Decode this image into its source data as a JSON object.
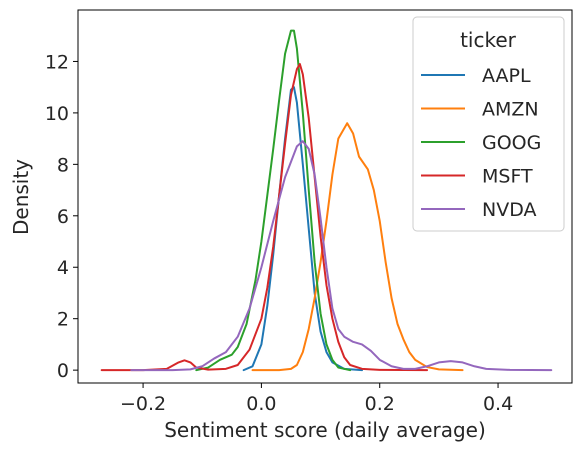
{
  "chart_data": {
    "type": "line",
    "xlabel": "Sentiment score (daily average)",
    "ylabel": "Density",
    "xlim": [
      -0.31,
      0.525
    ],
    "ylim": [
      -0.5,
      14.0
    ],
    "x_ticks": [
      -0.2,
      0.0,
      0.2,
      0.4
    ],
    "x_tick_labels": [
      "−0.2",
      "0.0",
      "0.2",
      "0.4"
    ],
    "y_ticks": [
      0,
      2,
      4,
      6,
      8,
      10,
      12
    ],
    "y_tick_labels": [
      "0",
      "2",
      "4",
      "6",
      "8",
      "10",
      "12"
    ],
    "grid": false,
    "legend": {
      "title": "ticker",
      "position": "top-right"
    },
    "series": [
      {
        "name": "AAPL",
        "color": "#1f77b4",
        "points": [
          [
            -0.03,
            0
          ],
          [
            -0.015,
            0.15
          ],
          [
            0.0,
            1.0
          ],
          [
            0.01,
            2.5
          ],
          [
            0.02,
            4.5
          ],
          [
            0.03,
            6.8
          ],
          [
            0.04,
            9.0
          ],
          [
            0.05,
            10.9
          ],
          [
            0.055,
            11.0
          ],
          [
            0.06,
            10.4
          ],
          [
            0.07,
            8.0
          ],
          [
            0.08,
            5.5
          ],
          [
            0.09,
            3.0
          ],
          [
            0.1,
            1.5
          ],
          [
            0.11,
            0.7
          ],
          [
            0.12,
            0.3
          ],
          [
            0.14,
            0.05
          ],
          [
            0.17,
            0
          ]
        ]
      },
      {
        "name": "AMZN",
        "color": "#ff7f0e",
        "points": [
          [
            -0.015,
            0
          ],
          [
            0.03,
            0
          ],
          [
            0.05,
            0.05
          ],
          [
            0.06,
            0.2
          ],
          [
            0.07,
            0.7
          ],
          [
            0.08,
            1.6
          ],
          [
            0.09,
            2.8
          ],
          [
            0.1,
            4.2
          ],
          [
            0.11,
            5.8
          ],
          [
            0.12,
            7.6
          ],
          [
            0.13,
            9.0
          ],
          [
            0.145,
            9.6
          ],
          [
            0.155,
            9.2
          ],
          [
            0.165,
            8.3
          ],
          [
            0.18,
            7.8
          ],
          [
            0.19,
            7.0
          ],
          [
            0.2,
            5.8
          ],
          [
            0.21,
            4.2
          ],
          [
            0.22,
            2.8
          ],
          [
            0.23,
            1.8
          ],
          [
            0.24,
            1.2
          ],
          [
            0.25,
            0.7
          ],
          [
            0.26,
            0.4
          ],
          [
            0.28,
            0.12
          ],
          [
            0.3,
            0.03
          ],
          [
            0.34,
            0
          ]
        ]
      },
      {
        "name": "GOOG",
        "color": "#2ca02c",
        "points": [
          [
            -0.11,
            0
          ],
          [
            -0.09,
            0.1
          ],
          [
            -0.07,
            0.4
          ],
          [
            -0.05,
            0.6
          ],
          [
            -0.04,
            0.9
          ],
          [
            -0.025,
            1.8
          ],
          [
            -0.01,
            3.5
          ],
          [
            0.0,
            5.0
          ],
          [
            0.01,
            6.8
          ],
          [
            0.02,
            8.6
          ],
          [
            0.03,
            10.5
          ],
          [
            0.04,
            12.3
          ],
          [
            0.05,
            13.2
          ],
          [
            0.055,
            13.2
          ],
          [
            0.06,
            12.5
          ],
          [
            0.07,
            10.0
          ],
          [
            0.08,
            7.0
          ],
          [
            0.09,
            4.2
          ],
          [
            0.1,
            2.2
          ],
          [
            0.11,
            1.0
          ],
          [
            0.12,
            0.4
          ],
          [
            0.13,
            0.1
          ],
          [
            0.15,
            0
          ]
        ]
      },
      {
        "name": "MSFT",
        "color": "#d62728",
        "points": [
          [
            -0.27,
            0
          ],
          [
            -0.2,
            0
          ],
          [
            -0.16,
            0.05
          ],
          [
            -0.14,
            0.3
          ],
          [
            -0.13,
            0.38
          ],
          [
            -0.12,
            0.3
          ],
          [
            -0.11,
            0.1
          ],
          [
            -0.09,
            0.02
          ],
          [
            -0.06,
            0.05
          ],
          [
            -0.04,
            0.2
          ],
          [
            -0.02,
            0.8
          ],
          [
            0.0,
            2.0
          ],
          [
            0.01,
            3.2
          ],
          [
            0.02,
            4.8
          ],
          [
            0.03,
            6.8
          ],
          [
            0.04,
            8.8
          ],
          [
            0.05,
            10.7
          ],
          [
            0.06,
            11.7
          ],
          [
            0.065,
            11.9
          ],
          [
            0.07,
            11.5
          ],
          [
            0.08,
            9.8
          ],
          [
            0.09,
            7.5
          ],
          [
            0.1,
            5.2
          ],
          [
            0.11,
            3.3
          ],
          [
            0.12,
            2.0
          ],
          [
            0.13,
            1.1
          ],
          [
            0.14,
            0.5
          ],
          [
            0.15,
            0.2
          ],
          [
            0.17,
            0.05
          ],
          [
            0.2,
            0.01
          ],
          [
            0.28,
            0
          ]
        ]
      },
      {
        "name": "NVDA",
        "color": "#9467bd",
        "points": [
          [
            -0.22,
            0
          ],
          [
            -0.15,
            0
          ],
          [
            -0.12,
            0.03
          ],
          [
            -0.1,
            0.15
          ],
          [
            -0.08,
            0.45
          ],
          [
            -0.06,
            0.7
          ],
          [
            -0.04,
            1.3
          ],
          [
            -0.02,
            2.4
          ],
          [
            0.0,
            4.0
          ],
          [
            0.02,
            5.8
          ],
          [
            0.04,
            7.5
          ],
          [
            0.06,
            8.7
          ],
          [
            0.07,
            8.9
          ],
          [
            0.08,
            8.6
          ],
          [
            0.09,
            7.6
          ],
          [
            0.1,
            5.9
          ],
          [
            0.11,
            4.0
          ],
          [
            0.12,
            2.4
          ],
          [
            0.13,
            1.6
          ],
          [
            0.14,
            1.3
          ],
          [
            0.155,
            1.1
          ],
          [
            0.17,
            1.0
          ],
          [
            0.185,
            0.75
          ],
          [
            0.2,
            0.4
          ],
          [
            0.22,
            0.15
          ],
          [
            0.24,
            0.05
          ],
          [
            0.26,
            0.05
          ],
          [
            0.28,
            0.15
          ],
          [
            0.3,
            0.3
          ],
          [
            0.32,
            0.35
          ],
          [
            0.34,
            0.3
          ],
          [
            0.36,
            0.15
          ],
          [
            0.38,
            0.05
          ],
          [
            0.42,
            0.01
          ],
          [
            0.49,
            0
          ]
        ]
      }
    ]
  }
}
